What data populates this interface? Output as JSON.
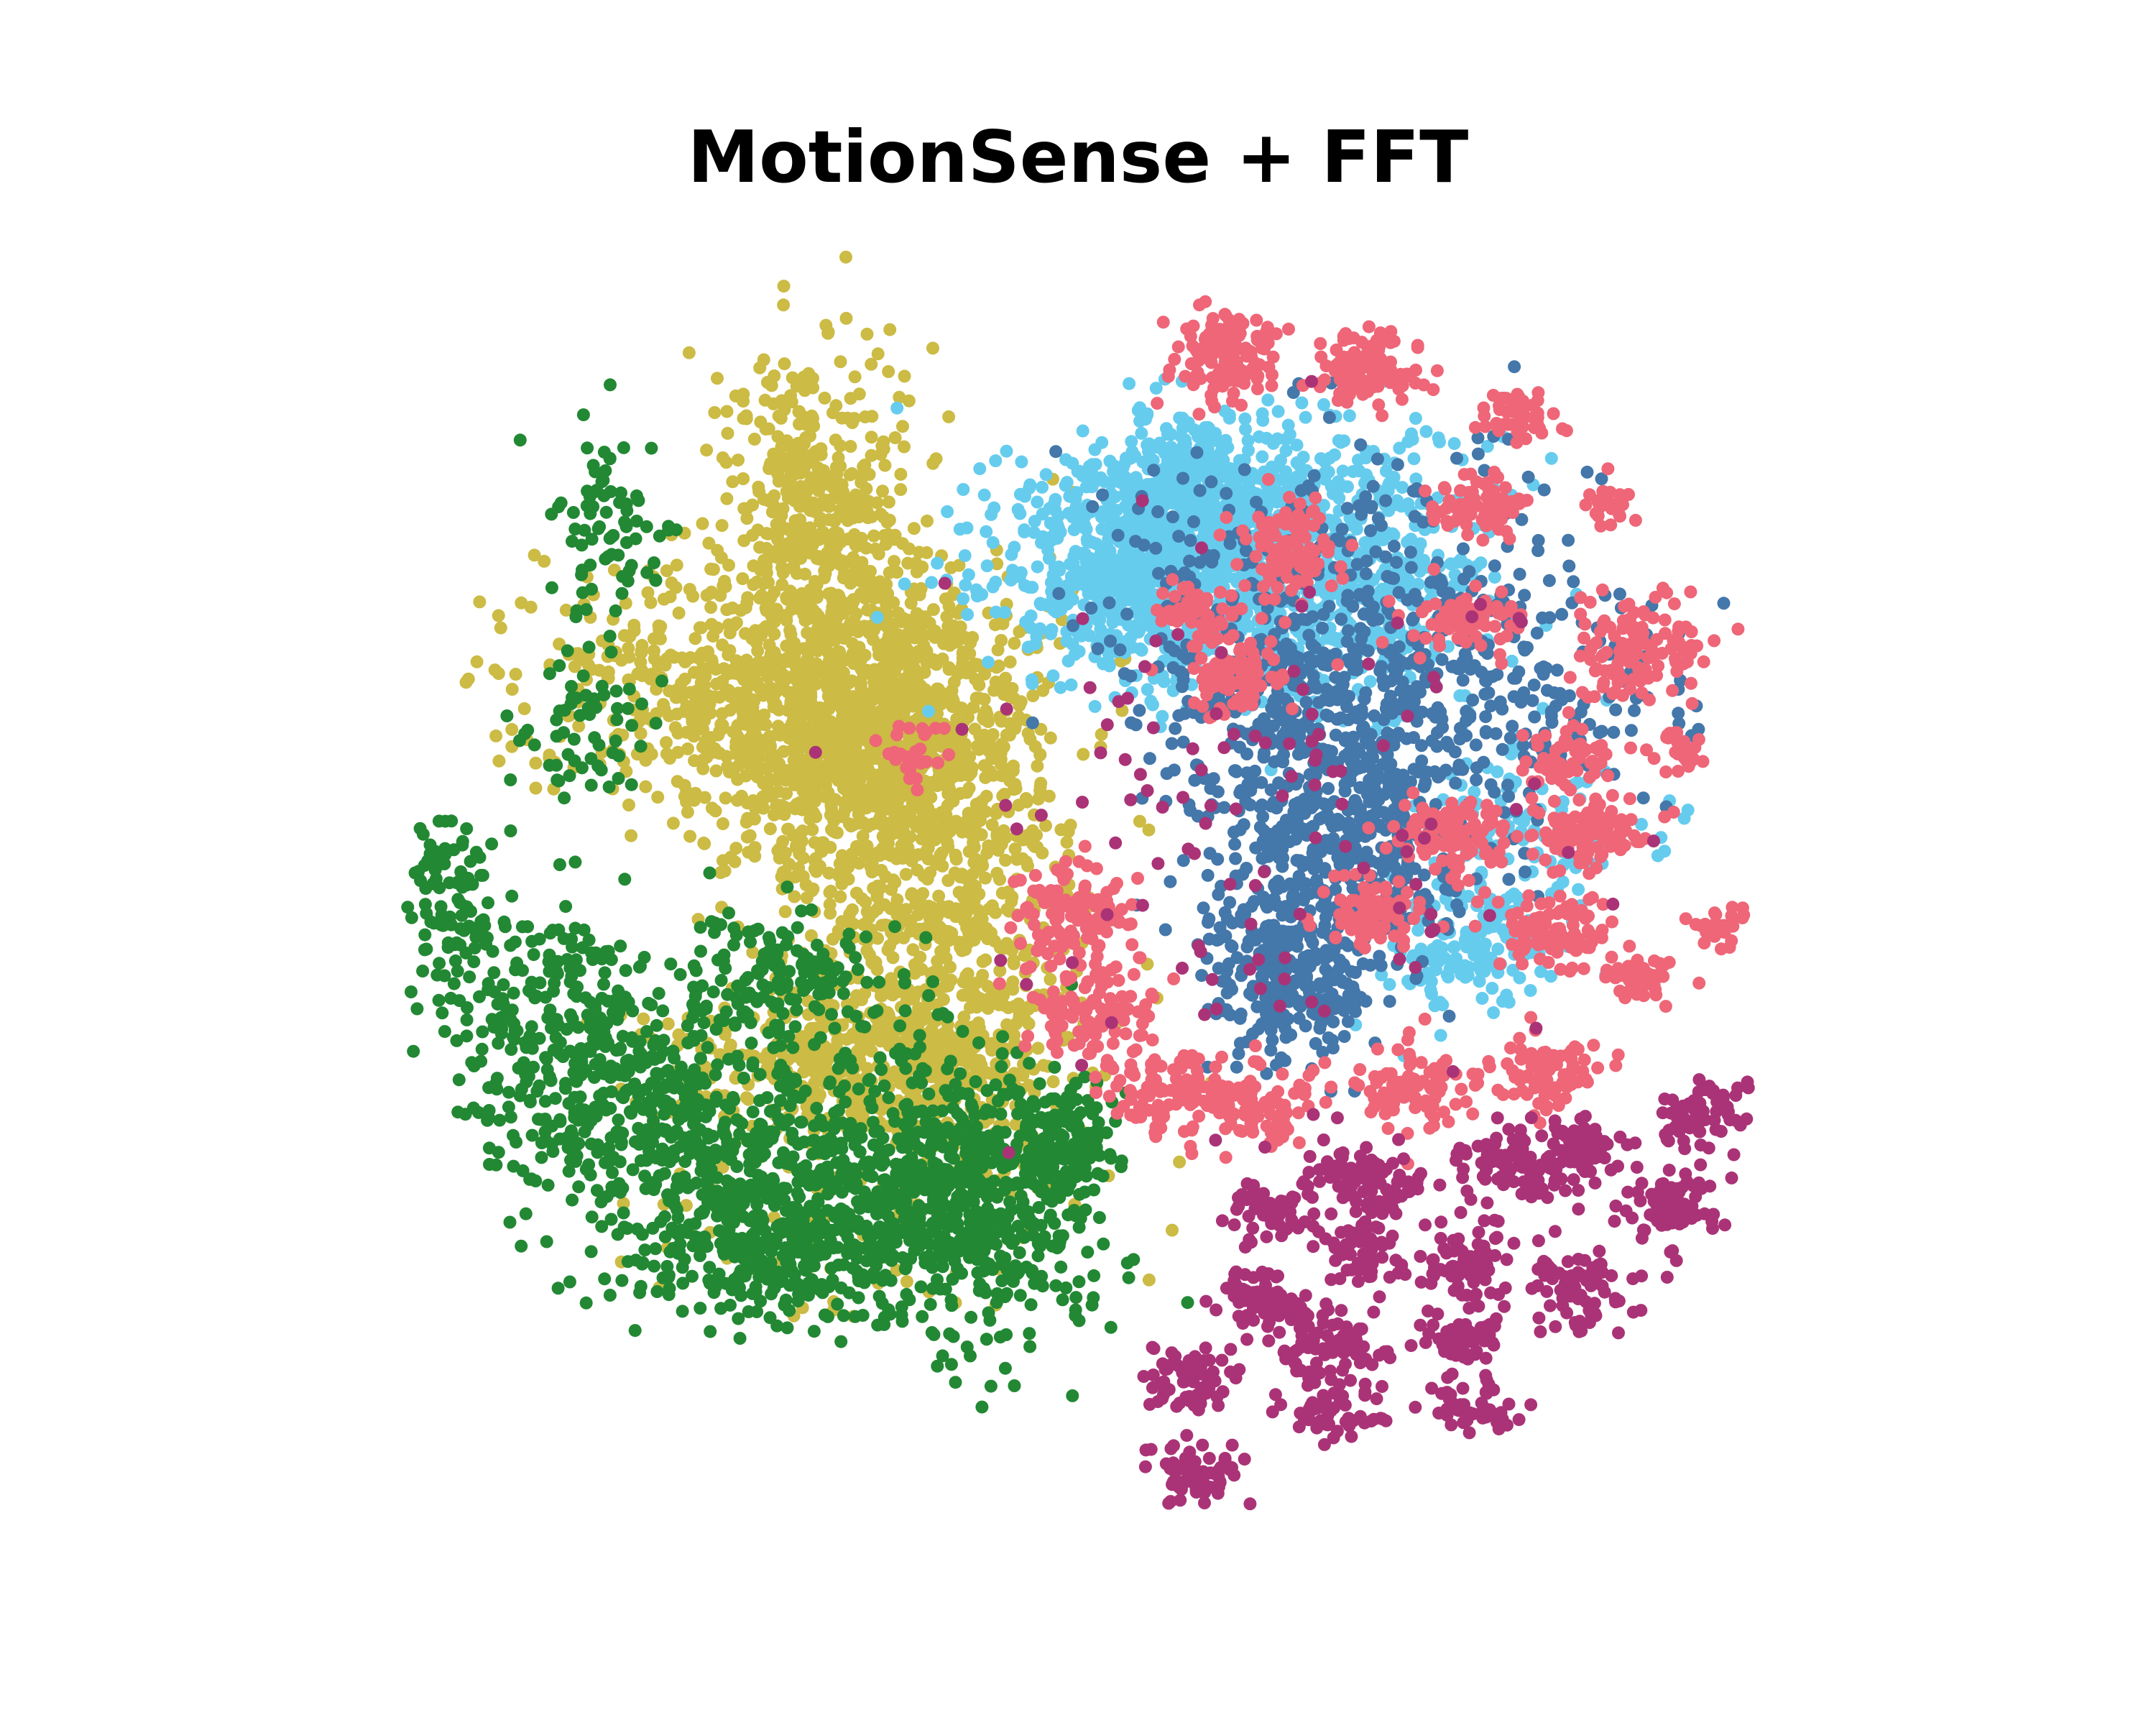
{
  "chart_data": {
    "type": "scatter",
    "title": "MotionSense + FFT",
    "xlabel": "",
    "ylabel": "",
    "axes_visible": false,
    "grid": false,
    "legend": "none",
    "xlim": [
      -100,
      100
    ],
    "ylim": [
      -100,
      100
    ],
    "series": [
      {
        "color": "#ccbb44",
        "clusters": [
          {
            "cx": -30,
            "cy": 22,
            "sx": 10,
            "sy": 14,
            "n": 1400
          },
          {
            "cx": -38,
            "cy": 58,
            "sx": 6,
            "sy": 14,
            "n": 450
          },
          {
            "cx": -52,
            "cy": 30,
            "sx": 12,
            "sy": 9,
            "n": 380
          },
          {
            "cx": -22,
            "cy": -18,
            "sx": 9,
            "sy": 14,
            "n": 550
          },
          {
            "cx": -35,
            "cy": -28,
            "sx": 12,
            "sy": 6,
            "n": 300
          },
          {
            "cx": -32,
            "cy": -50,
            "sx": 14,
            "sy": 12,
            "n": 110
          }
        ]
      },
      {
        "color": "#228833",
        "clusters": [
          {
            "cx": -35,
            "cy": -48,
            "sx": 13,
            "sy": 10,
            "n": 650
          },
          {
            "cx": -18,
            "cy": -50,
            "sx": 8,
            "sy": 12,
            "n": 420
          },
          {
            "cx": -7,
            "cy": -42,
            "sx": 3,
            "sy": 5,
            "n": 160
          },
          {
            "cx": -58,
            "cy": -35,
            "sx": 8,
            "sy": 10,
            "n": 330
          },
          {
            "cx": -73,
            "cy": -25,
            "sx": 6,
            "sy": 12,
            "n": 230
          },
          {
            "cx": -42,
            "cy": -15,
            "sx": 7,
            "sy": 5,
            "n": 150
          },
          {
            "cx": -84,
            "cy": -3,
            "sx": 3,
            "sy": 8,
            "n": 100
          },
          {
            "cx": -65,
            "cy": 55,
            "sx": 4,
            "sy": 10,
            "n": 80
          },
          {
            "cx": -68,
            "cy": 25,
            "sx": 4,
            "sy": 6,
            "n": 60
          },
          {
            "cx": -47,
            "cy": -60,
            "sx": 10,
            "sy": 4,
            "n": 150
          }
        ]
      },
      {
        "color": "#66ccee",
        "clusters": [
          {
            "cx": 3,
            "cy": 50,
            "sx": 10,
            "sy": 9,
            "n": 750
          },
          {
            "cx": 20,
            "cy": 58,
            "sx": 12,
            "sy": 7,
            "n": 420
          },
          {
            "cx": 28,
            "cy": 42,
            "sx": 10,
            "sy": 8,
            "n": 380
          },
          {
            "cx": 8,
            "cy": 65,
            "sx": 5,
            "sy": 4,
            "n": 160
          },
          {
            "cx": 45,
            "cy": -10,
            "sx": 5,
            "sy": 5,
            "n": 150
          },
          {
            "cx": 52,
            "cy": 8,
            "sx": 8,
            "sy": 8,
            "n": 120
          }
        ]
      },
      {
        "color": "#4477aa",
        "clusters": [
          {
            "cx": 28,
            "cy": 10,
            "sx": 9,
            "sy": 13,
            "n": 650
          },
          {
            "cx": 22,
            "cy": -15,
            "sx": 5,
            "sy": 7,
            "n": 250
          },
          {
            "cx": 35,
            "cy": 40,
            "sx": 15,
            "sy": 14,
            "n": 300
          },
          {
            "cx": 50,
            "cy": 30,
            "sx": 12,
            "sy": 10,
            "n": 150
          },
          {
            "cx": 15,
            "cy": 45,
            "sx": 10,
            "sy": 10,
            "n": 120
          }
        ]
      },
      {
        "color": "#ee6677",
        "clusters": [
          {
            "cx": 14,
            "cy": 83,
            "sx": 3.5,
            "sy": 3.5,
            "n": 130
          },
          {
            "cx": 32,
            "cy": 80,
            "sx": 3.5,
            "sy": 3,
            "n": 120
          },
          {
            "cx": 51,
            "cy": 73,
            "sx": 2.5,
            "sy": 1.8,
            "n": 60
          },
          {
            "cx": 47,
            "cy": 59,
            "sx": 3,
            "sy": 2.5,
            "n": 80
          },
          {
            "cx": 63,
            "cy": 59,
            "sx": 1.8,
            "sy": 1.5,
            "n": 30
          },
          {
            "cx": 23,
            "cy": 52,
            "sx": 3,
            "sy": 3.5,
            "n": 100
          },
          {
            "cx": 45,
            "cy": 41,
            "sx": 4,
            "sy": 2.5,
            "n": 80
          },
          {
            "cx": 67,
            "cy": 36,
            "sx": 4,
            "sy": 4,
            "n": 120
          },
          {
            "cx": 58,
            "cy": 19,
            "sx": 3,
            "sy": 2.5,
            "n": 60
          },
          {
            "cx": 72,
            "cy": 20,
            "sx": 1.5,
            "sy": 1.5,
            "n": 25
          },
          {
            "cx": 43,
            "cy": 7,
            "sx": 4,
            "sy": 3,
            "n": 100
          },
          {
            "cx": 60,
            "cy": 8,
            "sx": 4,
            "sy": 3,
            "n": 100
          },
          {
            "cx": 33,
            "cy": -5,
            "sx": 3,
            "sy": 3,
            "n": 90
          },
          {
            "cx": 56,
            "cy": -8,
            "sx": 3.5,
            "sy": 3,
            "n": 100
          },
          {
            "cx": 67,
            "cy": -15,
            "sx": 2.5,
            "sy": 2,
            "n": 50
          },
          {
            "cx": 77,
            "cy": -7,
            "sx": 1.5,
            "sy": 1.5,
            "n": 25
          },
          {
            "cx": -5,
            "cy": -5,
            "sx": 4,
            "sy": 4,
            "n": 110
          },
          {
            "cx": -3,
            "cy": -20,
            "sx": 4,
            "sy": 4,
            "n": 110
          },
          {
            "cx": 7,
            "cy": -33,
            "sx": 4,
            "sy": 3.5,
            "n": 100
          },
          {
            "cx": 18,
            "cy": -35,
            "sx": 4,
            "sy": 3.5,
            "n": 100
          },
          {
            "cx": 38,
            "cy": -33,
            "sx": 4,
            "sy": 3,
            "n": 90
          },
          {
            "cx": 55,
            "cy": -30,
            "sx": 4,
            "sy": 3,
            "n": 90
          },
          {
            "cx": 16,
            "cy": 33,
            "sx": 4,
            "sy": 3.5,
            "n": 90
          },
          {
            "cx": -25,
            "cy": 20,
            "sx": 2,
            "sy": 2,
            "n": 30
          },
          {
            "cx": 10,
            "cy": 42,
            "sx": 3,
            "sy": 3,
            "n": 50
          }
        ]
      },
      {
        "color": "#aa3377",
        "clusters": [
          {
            "cx": 32,
            "cy": -47,
            "sx": 3.5,
            "sy": 3,
            "n": 100
          },
          {
            "cx": 52,
            "cy": -45,
            "sx": 3.5,
            "sy": 3,
            "n": 100
          },
          {
            "cx": 60,
            "cy": -43,
            "sx": 2.5,
            "sy": 2.5,
            "n": 60
          },
          {
            "cx": 71,
            "cy": -50,
            "sx": 3,
            "sy": 3,
            "n": 80
          },
          {
            "cx": 75,
            "cy": -37,
            "sx": 3,
            "sy": 2.5,
            "n": 70
          },
          {
            "cx": 20,
            "cy": -52,
            "sx": 2.5,
            "sy": 2.5,
            "n": 60
          },
          {
            "cx": 32,
            "cy": -58,
            "sx": 2.5,
            "sy": 3,
            "n": 60
          },
          {
            "cx": 45,
            "cy": -60,
            "sx": 3,
            "sy": 3,
            "n": 70
          },
          {
            "cx": 60,
            "cy": -65,
            "sx": 3.5,
            "sy": 3,
            "n": 80
          },
          {
            "cx": 19,
            "cy": -66,
            "sx": 3,
            "sy": 2.5,
            "n": 70
          },
          {
            "cx": 28,
            "cy": -73,
            "sx": 3.5,
            "sy": 3,
            "n": 80
          },
          {
            "cx": 44,
            "cy": -72,
            "sx": 3,
            "sy": 2.5,
            "n": 60
          },
          {
            "cx": 10,
            "cy": -78,
            "sx": 3,
            "sy": 2.5,
            "n": 70
          },
          {
            "cx": 28,
            "cy": -83,
            "sx": 3,
            "sy": 2.5,
            "n": 60
          },
          {
            "cx": 46,
            "cy": -83,
            "sx": 2.5,
            "sy": 2,
            "n": 50
          },
          {
            "cx": 10,
            "cy": -93,
            "sx": 3,
            "sy": 2.5,
            "n": 70
          },
          {
            "cx": 20,
            "cy": 10,
            "sx": 20,
            "sy": 25,
            "n": 120
          }
        ]
      }
    ]
  }
}
